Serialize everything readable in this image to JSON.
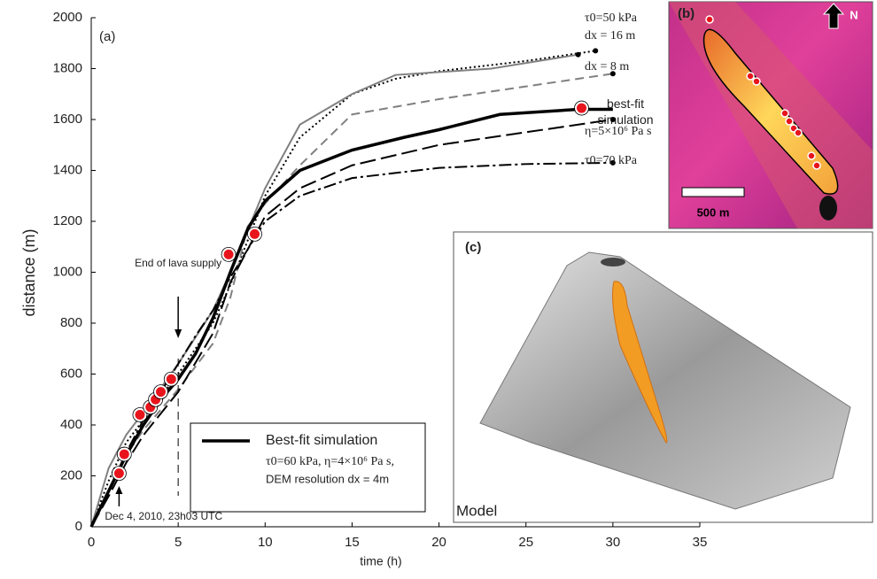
{
  "chart_data": {
    "type": "line",
    "panel_label": "(a)",
    "x_label": "time (h)",
    "y_label": "distance (m)",
    "xlim": [
      0,
      35
    ],
    "xticks": [
      0,
      5,
      10,
      15,
      20,
      25,
      30,
      35
    ],
    "ylim": [
      0,
      2000
    ],
    "yticks": [
      0,
      200,
      400,
      600,
      800,
      1000,
      1200,
      1400,
      1600,
      1800,
      2000
    ],
    "series": [
      {
        "name": "τ0=50 kPa",
        "color": "#000000",
        "dash": "dotted",
        "width": 2,
        "end_marker": true,
        "x": [
          0,
          1,
          2,
          3,
          5,
          7,
          8,
          10,
          12,
          15,
          17.5,
          20,
          25,
          29
        ],
        "values": [
          0,
          180,
          330,
          420,
          600,
          800,
          950,
          1300,
          1530,
          1700,
          1760,
          1790,
          1830,
          1870
        ]
      },
      {
        "name": "dx = 16 m",
        "color": "#808080",
        "dash": "solid",
        "width": 2,
        "end_marker": true,
        "x": [
          0,
          1,
          2,
          3,
          5,
          7,
          8,
          10,
          12,
          15,
          17.5,
          23,
          28
        ],
        "values": [
          0,
          230,
          360,
          450,
          640,
          850,
          1000,
          1330,
          1580,
          1700,
          1775,
          1800,
          1855
        ]
      },
      {
        "name": "dx = 8 m",
        "color": "#808080",
        "dash": "dashed",
        "width": 2,
        "end_marker": true,
        "x": [
          0,
          1,
          2,
          3,
          5,
          7,
          8,
          9,
          10,
          12,
          15,
          20,
          25,
          30
        ],
        "values": [
          0,
          140,
          280,
          380,
          540,
          720,
          900,
          1180,
          1270,
          1420,
          1620,
          1680,
          1730,
          1780
        ]
      },
      {
        "name": "best-fit simulation",
        "color": "#000000",
        "dash": "solid",
        "width": 3.5,
        "end_marker": false,
        "x": [
          0,
          1,
          2,
          3,
          4,
          5,
          6,
          7,
          8,
          9,
          10,
          12,
          15,
          18,
          20,
          23.5,
          28,
          30
        ],
        "values": [
          0,
          140,
          280,
          400,
          500,
          580,
          680,
          820,
          1000,
          1170,
          1280,
          1400,
          1480,
          1530,
          1560,
          1620,
          1640,
          1640
        ]
      },
      {
        "name": "η=5×10⁶ Pa s",
        "color": "#000000",
        "dash": "longdash",
        "width": 2,
        "end_marker": true,
        "x": [
          0,
          1,
          2,
          3,
          5,
          7,
          8,
          10,
          12,
          15,
          20,
          25,
          30
        ],
        "values": [
          0,
          120,
          250,
          360,
          530,
          760,
          960,
          1220,
          1330,
          1420,
          1500,
          1550,
          1600
        ]
      },
      {
        "name": "τ0=70 kPa",
        "color": "#000000",
        "dash": "dashdot",
        "width": 2,
        "end_marker": true,
        "x": [
          0,
          1,
          2,
          3,
          5,
          6,
          7,
          8,
          10,
          12,
          15,
          20,
          25,
          30
        ],
        "values": [
          0,
          140,
          290,
          420,
          640,
          750,
          850,
          980,
          1200,
          1300,
          1370,
          1410,
          1425,
          1430
        ]
      }
    ],
    "observations": {
      "color": "#e8141c",
      "x": [
        1.6,
        1.9,
        2.8,
        3.4,
        3.7,
        4.0,
        4.6,
        7.9,
        9.4,
        28.2
      ],
      "values": [
        210,
        285,
        440,
        470,
        500,
        530,
        580,
        1070,
        1150,
        1645
      ]
    },
    "lava_supply_end": {
      "label": "End of lava supply",
      "x": 5
    },
    "start_annotation": {
      "label": "Dec 4, 2010, 23h03 UTC",
      "x": 1.6
    },
    "legend": {
      "title": "Best-fit simulation",
      "lines": [
        "τ0=60 kPa, η=4×10⁶ Pa s,",
        "DEM resolution dx = 4m"
      ]
    }
  },
  "panel_b": {
    "label": "(b)",
    "north": "N",
    "scale": "500 m"
  },
  "panel_c": {
    "label": "(c)",
    "caption": "Model"
  }
}
